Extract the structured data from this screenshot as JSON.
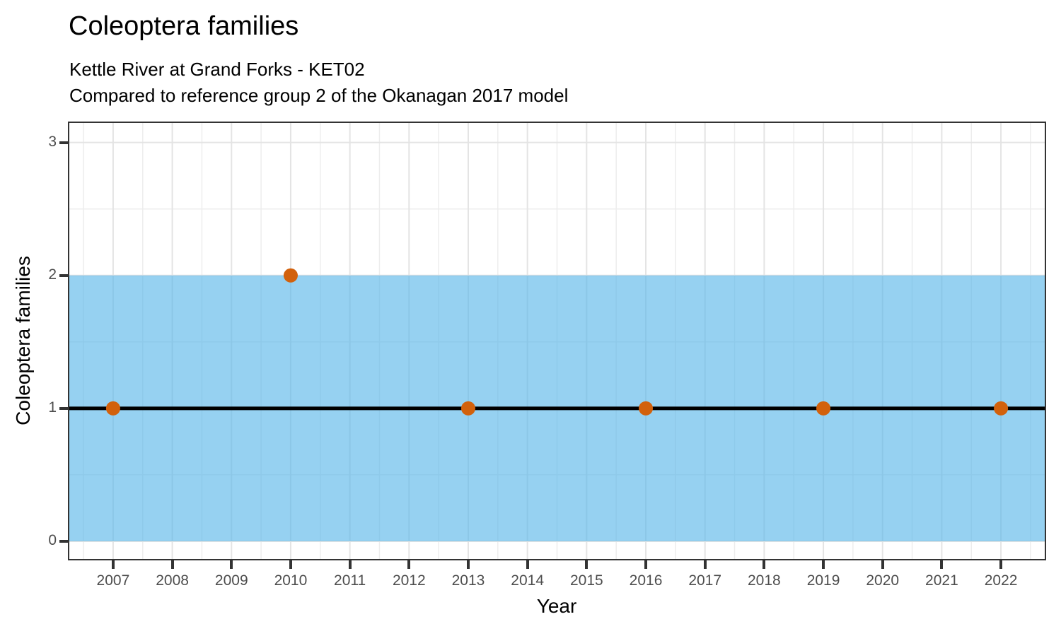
{
  "chart_data": {
    "type": "scatter",
    "title": "Coleoptera families",
    "subtitle": [
      "Kettle River at Grand Forks - KET02",
      "Compared to reference group 2 of the Okanagan 2017 model"
    ],
    "xlabel": "Year",
    "ylabel": "Coleoptera families",
    "x_ticks": [
      2007,
      2008,
      2009,
      2010,
      2011,
      2012,
      2013,
      2014,
      2015,
      2016,
      2017,
      2018,
      2019,
      2020,
      2021,
      2022
    ],
    "y_ticks": [
      0,
      1,
      2,
      3
    ],
    "xlim": [
      2006.26,
      2022.74
    ],
    "ylim": [
      -0.133,
      3.147
    ],
    "grid": "major-and-minor",
    "legend": "none",
    "reference_band": {
      "ymin": 0,
      "ymax": 2,
      "color": "#56B4E9",
      "opacity": 0.62
    },
    "reference_line": {
      "y": 1,
      "color": "#000000",
      "width": 5
    },
    "points": [
      {
        "x": 2007,
        "y": 1
      },
      {
        "x": 2010,
        "y": 2
      },
      {
        "x": 2013,
        "y": 1
      },
      {
        "x": 2016,
        "y": 1
      },
      {
        "x": 2019,
        "y": 1
      },
      {
        "x": 2022,
        "y": 1
      }
    ],
    "point_style": {
      "color": "#D2610C",
      "radius": 10
    },
    "layout": {
      "panel_background": "#ffffff",
      "panel_border_color": "#333333",
      "grid_major_color": "#e4e4e4",
      "grid_minor_color": "#ededed",
      "tick_mark_color": "#333333",
      "tick_label_color": "#4d4d4d"
    }
  }
}
